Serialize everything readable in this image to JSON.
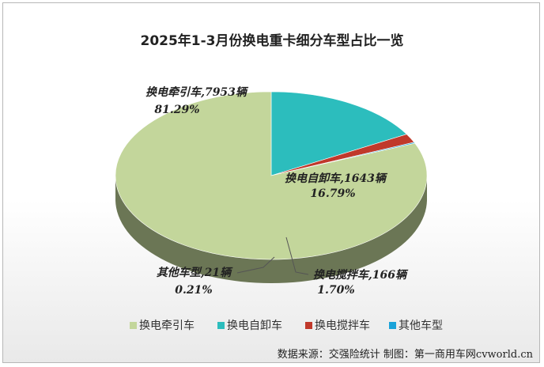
{
  "chart_data": {
    "type": "pie",
    "title": "2025年1-3月份换电重卡细分车型占比一览",
    "slices": [
      {
        "name": "换电牵引车",
        "units": "7953辆",
        "value": 81.29,
        "label": "81.29%",
        "color": "#c3d69b"
      },
      {
        "name": "换电自卸车",
        "units": "1643辆",
        "value": 16.79,
        "label": "16.79%",
        "color": "#2cbdbd"
      },
      {
        "name": "换电搅拌车",
        "units": "166辆",
        "value": 1.7,
        "label": "1.70%",
        "color": "#c0392b"
      },
      {
        "name": "其他车型",
        "units": "21辆",
        "value": 0.21,
        "label": "0.21%",
        "color": "#1aa3d9"
      }
    ],
    "legend_position": "bottom"
  },
  "source": "数据来源：交强险统计 制图：第一商用车网cvworld.cn"
}
